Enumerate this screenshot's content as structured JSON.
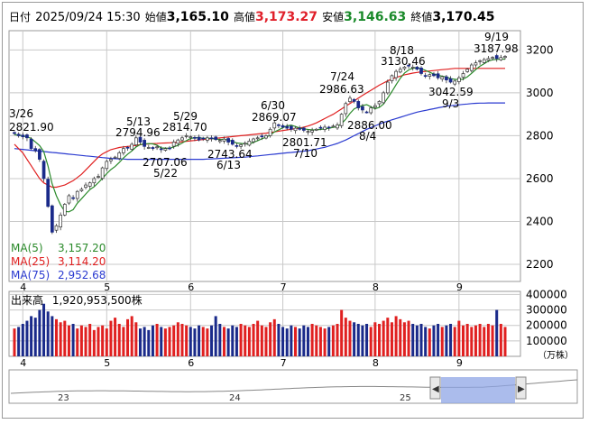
{
  "header": {
    "label_date": "日付",
    "datetime": "2025/09/24 15:30",
    "label_open": "始値",
    "open": "3,165.10",
    "label_high": "高値",
    "high": "3,173.27",
    "label_low": "安値",
    "low": "3,146.63",
    "label_close": "終値",
    "close": "3,170.45"
  },
  "colors": {
    "up": "#e02020",
    "down": "#1a2a8a",
    "ma5": "#2a8a2a",
    "ma25": "#e02020",
    "ma75": "#2a3ad0",
    "grid": "#c8c8c8",
    "volume_up": "#e02020",
    "volume_down": "#1a2a8a",
    "navigator_fill": "#8fa6e6"
  },
  "ma_legend": [
    {
      "label": "MA(5)",
      "value": "3,157.20",
      "color": "#2a8a2a"
    },
    {
      "label": "MA(25)",
      "value": "3,114.20",
      "color": "#e02020"
    },
    {
      "label": "MA(75)",
      "value": "2,952.68",
      "color": "#2a3ad0"
    }
  ],
  "volume_label": "出来高",
  "volume_value": "1,920,953,500株",
  "volume_unit": "（万株）",
  "navigator": {
    "labels": [
      "23",
      "24",
      "25"
    ],
    "left_handle_icon": "chevron-left-icon",
    "right_handle_icon": "chevron-right-icon"
  },
  "chart_data": {
    "type": "candlestick",
    "x_axis": {
      "labels": [
        "4",
        "5",
        "6",
        "7",
        "8",
        "9"
      ]
    },
    "price_axis": {
      "ticks": [
        "3200",
        "3000",
        "2800",
        "2600",
        "2400",
        "2200"
      ],
      "range": [
        2120,
        3290
      ]
    },
    "volume_axis": {
      "ticks": [
        "400000",
        "300000",
        "200000",
        "100000"
      ],
      "range": [
        0,
        420000
      ]
    },
    "annotations": [
      {
        "date": "3/26",
        "value": "2821.90",
        "kind": "high"
      },
      {
        "date": "5/13",
        "value": "2794.96",
        "kind": "high"
      },
      {
        "date": "5/22",
        "value": "2707.06",
        "kind": "low"
      },
      {
        "date": "5/29",
        "value": "2814.70",
        "kind": "high"
      },
      {
        "date": "6/13",
        "value": "2743.64",
        "kind": "low"
      },
      {
        "date": "6/30",
        "value": "2869.07",
        "kind": "high"
      },
      {
        "date": "7/10",
        "value": "2801.71",
        "kind": "low"
      },
      {
        "date": "7/24",
        "value": "2986.63",
        "kind": "high"
      },
      {
        "date": "8/4",
        "value": "2886.00",
        "kind": "low"
      },
      {
        "date": "8/18",
        "value": "3130.46",
        "kind": "high"
      },
      {
        "date": "9/3",
        "value": "3042.59",
        "kind": "low"
      },
      {
        "date": "9/19",
        "value": "3187.98",
        "kind": "high"
      }
    ],
    "closes": [
      2810,
      2800,
      2795,
      2790,
      2740,
      2730,
      2690,
      2600,
      2470,
      2350,
      2380,
      2430,
      2480,
      2520,
      2510,
      2540,
      2550,
      2570,
      2580,
      2600,
      2610,
      2650,
      2680,
      2690,
      2700,
      2720,
      2740,
      2745,
      2760,
      2790,
      2770,
      2750,
      2745,
      2740,
      2748,
      2735,
      2740,
      2742,
      2770,
      2780,
      2790,
      2800,
      2795,
      2790,
      2780,
      2785,
      2790,
      2788,
      2782,
      2778,
      2784,
      2770,
      2760,
      2750,
      2758,
      2765,
      2775,
      2785,
      2790,
      2795,
      2800,
      2830,
      2860,
      2850,
      2840,
      2835,
      2830,
      2835,
      2830,
      2825,
      2820,
      2825,
      2830,
      2835,
      2840,
      2838,
      2845,
      2850,
      2900,
      2950,
      2975,
      2960,
      2930,
      2920,
      2910,
      2930,
      2940,
      2960,
      3000,
      3050,
      3080,
      3100,
      3110,
      3120,
      3125,
      3120,
      3110,
      3090,
      3080,
      3085,
      3080,
      3070,
      3075,
      3060,
      3050,
      3055,
      3070,
      3090,
      3110,
      3130,
      3140,
      3150,
      3155,
      3160,
      3165,
      3160,
      3165,
      3170
    ],
    "ma5": [
      2805,
      2802,
      2799,
      2795,
      2787,
      2771,
      2754,
      2726,
      2659,
      2576,
      2520,
      2478,
      2447,
      2445,
      2455,
      2485,
      2506,
      2528,
      2549,
      2562,
      2581,
      2601,
      2623,
      2642,
      2656,
      2675,
      2696,
      2714,
      2729,
      2747,
      2759,
      2762,
      2763,
      2762,
      2756,
      2743,
      2742,
      2741,
      2748,
      2755,
      2766,
      2777,
      2787,
      2791,
      2791,
      2788,
      2788,
      2787,
      2785,
      2782,
      2784,
      2779,
      2774,
      2766,
      2764,
      2762,
      2762,
      2769,
      2777,
      2786,
      2793,
      2803,
      2818,
      2827,
      2837,
      2846,
      2849,
      2843,
      2836,
      2832,
      2829,
      2827,
      2828,
      2829,
      2832,
      2835,
      2839,
      2842,
      2856,
      2877,
      2904,
      2925,
      2934,
      2941,
      2945,
      2935,
      2926,
      2932,
      2948,
      2976,
      3006,
      3038,
      3068,
      3092,
      3107,
      3115,
      3117,
      3113,
      3105,
      3096,
      3088,
      3082,
      3078,
      3074,
      3066,
      3063,
      3061,
      3064,
      3075,
      3091,
      3109,
      3124,
      3136,
      3148,
      3154,
      3156,
      3158,
      3157
    ],
    "ma25": [
      2760,
      2740,
      2720,
      2690,
      2660,
      2630,
      2600,
      2580,
      2570,
      2560,
      2560,
      2565,
      2570,
      2580,
      2590,
      2605,
      2620,
      2640,
      2660,
      2680,
      2700,
      2715,
      2725,
      2735,
      2740,
      2745,
      2748,
      2750,
      2752,
      2755,
      2758,
      2760,
      2762,
      2763,
      2764,
      2765,
      2766,
      2767,
      2768,
      2770,
      2772,
      2774,
      2776,
      2778,
      2780,
      2782,
      2784,
      2786,
      2788,
      2790,
      2792,
      2794,
      2796,
      2798,
      2800,
      2802,
      2804,
      2806,
      2808,
      2810,
      2812,
      2815,
      2818,
      2821,
      2824,
      2827,
      2830,
      2833,
      2836,
      2840,
      2845,
      2852,
      2860,
      2870,
      2880,
      2890,
      2900,
      2912,
      2925,
      2938,
      2950,
      2962,
      2975,
      2988,
      3000,
      3012,
      3024,
      3036,
      3046,
      3056,
      3064,
      3072,
      3078,
      3084,
      3088,
      3092,
      3095,
      3098,
      3100,
      3102,
      3104,
      3106,
      3108,
      3110,
      3112,
      3114,
      3114,
      3114,
      3114,
      3114,
      3114,
      3114,
      3114,
      3114,
      3114,
      3114,
      3114,
      3114
    ],
    "ma75": [
      2740,
      2738,
      2736,
      2734,
      2732,
      2730,
      2728,
      2726,
      2724,
      2722,
      2720,
      2718,
      2716,
      2714,
      2712,
      2710,
      2708,
      2706,
      2704,
      2702,
      2700,
      2698,
      2696,
      2694,
      2693,
      2692,
      2691,
      2690,
      2690,
      2690,
      2690,
      2690,
      2690,
      2690,
      2690,
      2690,
      2690,
      2690,
      2690,
      2690,
      2690,
      2690,
      2690,
      2690,
      2690,
      2690,
      2691,
      2692,
      2693,
      2694,
      2695,
      2696,
      2697,
      2698,
      2699,
      2700,
      2702,
      2704,
      2706,
      2708,
      2710,
      2712,
      2714,
      2716,
      2718,
      2720,
      2722,
      2724,
      2726,
      2728,
      2730,
      2734,
      2738,
      2742,
      2746,
      2752,
      2758,
      2764,
      2772,
      2780,
      2790,
      2800,
      2810,
      2820,
      2830,
      2838,
      2846,
      2854,
      2862,
      2868,
      2874,
      2880,
      2886,
      2892,
      2898,
      2904,
      2910,
      2914,
      2918,
      2922,
      2926,
      2930,
      2934,
      2938,
      2940,
      2942,
      2944,
      2946,
      2948,
      2950,
      2951,
      2952,
      2952,
      2953,
      2953,
      2953,
      2953,
      2953
    ],
    "volumes": [
      180000,
      190000,
      210000,
      230000,
      260000,
      250000,
      300000,
      340000,
      290000,
      260000,
      240000,
      220000,
      230000,
      200000,
      210000,
      180000,
      200000,
      190000,
      210000,
      170000,
      190000,
      200000,
      180000,
      230000,
      250000,
      210000,
      190000,
      240000,
      260000,
      220000,
      180000,
      190000,
      170000,
      200000,
      210000,
      190000,
      180000,
      190000,
      200000,
      220000,
      210000,
      200000,
      190000,
      180000,
      200000,
      190000,
      180000,
      200000,
      260000,
      210000,
      190000,
      180000,
      200000,
      190000,
      210000,
      200000,
      190000,
      210000,
      230000,
      200000,
      190000,
      220000,
      240000,
      210000,
      190000,
      180000,
      200000,
      190000,
      180000,
      200000,
      190000,
      210000,
      200000,
      190000,
      180000,
      190000,
      200000,
      210000,
      300000,
      250000,
      230000,
      220000,
      210000,
      200000,
      210000,
      190000,
      220000,
      210000,
      230000,
      250000,
      220000,
      260000,
      240000,
      220000,
      230000,
      210000,
      200000,
      210000,
      190000,
      180000,
      200000,
      210000,
      190000,
      200000,
      210000,
      190000,
      230000,
      200000,
      210000,
      190000,
      200000,
      210000,
      190000,
      210000,
      200000,
      300000,
      210000,
      190000
    ]
  }
}
